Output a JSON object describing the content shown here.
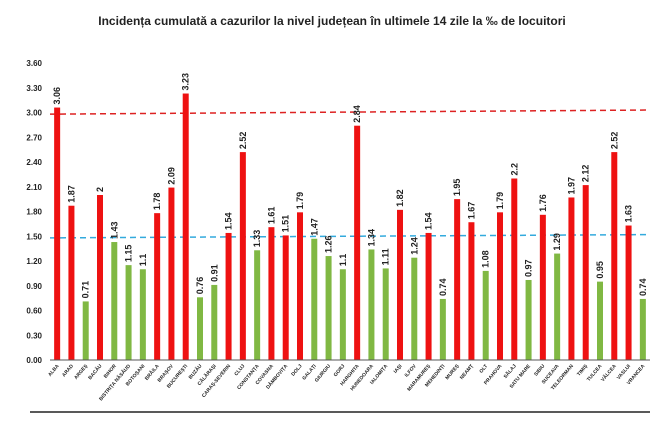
{
  "chart_data": {
    "type": "bar",
    "title": "Incidența cumulată a cazurilor la nivel județean în ultimele 14 zile la ‰ de locuitori",
    "xlabel": "",
    "ylabel": "",
    "ylim": [
      0,
      3.6
    ],
    "yticks": [
      "0.00",
      "0.30",
      "0.60",
      "0.90",
      "1.20",
      "1.50",
      "1.80",
      "2.10",
      "2.40",
      "2.70",
      "3.00",
      "3.30",
      "3.60"
    ],
    "grid": false,
    "legend": "none",
    "categories": [
      "ALBA",
      "ARAD",
      "ARGEȘ",
      "BACĂU",
      "BIHOR",
      "BISTRIȚA NĂSĂUD",
      "BOTOȘANI",
      "BRĂILA",
      "BRAȘOV",
      "BUCUREȘTI",
      "BUZĂU",
      "CĂLĂRAȘI",
      "CARAȘ-SEVERIN",
      "CLUJ",
      "CONSTANȚA",
      "COVASNA",
      "DÂMBOVIȚA",
      "DOLJ",
      "GALAȚI",
      "GIURGIU",
      "GORJ",
      "HARGHITA",
      "HUNEDOARA",
      "IALOMIȚA",
      "IAȘI",
      "ILFOV",
      "MARAMUREȘ",
      "MEHEDINȚI",
      "MUREȘ",
      "NEAMȚ",
      "OLT",
      "PRAHOVA",
      "SĂLAJ",
      "SATU MARE",
      "SIBIU",
      "SUCEAVA",
      "TELEORMAN",
      "TIMIȘ",
      "TULCEA",
      "VÂLCEA",
      "VASLUI",
      "VRANCEA"
    ],
    "values": [
      3.06,
      1.87,
      0.71,
      2,
      1.43,
      1.15,
      1.1,
      1.78,
      2.09,
      3.23,
      0.76,
      0.91,
      1.54,
      2.52,
      1.33,
      1.61,
      1.51,
      1.79,
      1.47,
      1.26,
      1.1,
      2.84,
      1.34,
      1.11,
      1.82,
      1.24,
      1.54,
      0.74,
      1.95,
      1.67,
      1.08,
      1.79,
      2.2,
      0.97,
      1.76,
      1.29,
      1.97,
      2.12,
      0.95,
      2.52,
      1.63,
      0.74
    ],
    "value_labels": [
      "3.06",
      "1.87",
      "0.71",
      "2",
      "1.43",
      "1.15",
      "1.1",
      "1.78",
      "2.09",
      "3.23",
      "0.76",
      "0.91",
      "1.54",
      "2.52",
      "1.33",
      "1.61",
      "1.51",
      "1.79",
      "1.47",
      "1.26",
      "1.1",
      "2.84",
      "1.34",
      "1.11",
      "1.82",
      "1.24",
      "1.54",
      "0.74",
      "1.95",
      "1.67",
      "1.08",
      "1.79",
      "2.2",
      "0.97",
      "1.76",
      "1.29",
      "1.97",
      "2.12",
      "0.95",
      "2.52",
      "1.63",
      "0.74"
    ],
    "reference_lines": [
      {
        "from": 2.98,
        "to": 3.03,
        "color": "#dd2222",
        "style": "dashed"
      },
      {
        "from": 1.48,
        "to": 1.52,
        "color": "#33aadd",
        "style": "dashed"
      }
    ],
    "threshold": 1.5,
    "colors": {
      "above": "#ee1111",
      "below": "#80b843",
      "axis": "#222222",
      "text": "#222222"
    }
  }
}
